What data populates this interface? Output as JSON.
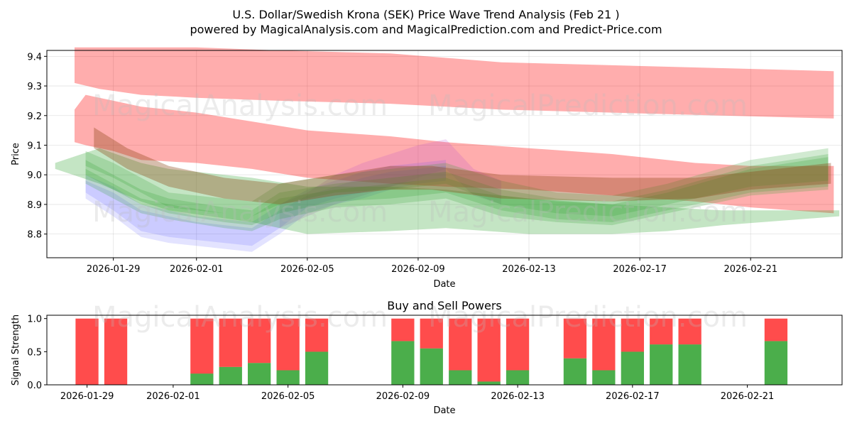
{
  "header": {
    "title_line1": "U.S. Dollar/Swedish Krona (SEK) Price Wave Trend Analysis (Feb 21 )",
    "title_line2": "powered by MagicalAnalysis.com and MagicalPrediction.com and Predict-Price.com"
  },
  "watermarks": {
    "top_left": "MagicalAnalysis.com",
    "top_right": "MagicalPrediction.com",
    "mid_left": "MagicalAnalysis.com",
    "mid_right": "MagicalPrediction.com",
    "bottom_left": "MagicalAnalysis.com",
    "bottom_right": "MagicalPrediction.com"
  },
  "colors": {
    "red_band": "#ff0000",
    "green_band": "#2ca02c",
    "blue_band": "#4444ff",
    "purple_band": "#b040d0",
    "brown_band": "#8b4513",
    "buy": "#2ca02c",
    "sell": "#ff0000"
  },
  "chart_data": [
    {
      "type": "area",
      "title": "",
      "xlabel": "Date",
      "ylabel": "Price",
      "ylim": [
        8.72,
        9.42
      ],
      "yticks": [
        8.8,
        8.9,
        9.0,
        9.1,
        9.2,
        9.3,
        9.4
      ],
      "ytick_labels": [
        "8.8",
        "8.9",
        "9.0",
        "9.1",
        "9.2",
        "9.3",
        "9.4"
      ],
      "xticks": [
        "2026-01-29",
        "2026-02-01",
        "2026-02-05",
        "2026-02-09",
        "2026-02-13",
        "2026-02-17",
        "2026-02-21"
      ],
      "x_day_range": [
        -1.4,
        27.3
      ],
      "x_tick_days": [
        1,
        4,
        8,
        12,
        16,
        20,
        24
      ],
      "series": [
        {
          "name": "red-upper",
          "color": "red",
          "opacity": 0.32,
          "x": [
            -0.4,
            0.5,
            2,
            4,
            7,
            11,
            15,
            19,
            23,
            27
          ],
          "lower": [
            9.31,
            9.29,
            9.27,
            9.26,
            9.25,
            9.24,
            9.22,
            9.21,
            9.2,
            9.19
          ],
          "upper": [
            9.43,
            9.43,
            9.43,
            9.43,
            9.42,
            9.41,
            9.38,
            9.37,
            9.36,
            9.35
          ]
        },
        {
          "name": "red-lower",
          "color": "red",
          "opacity": 0.32,
          "x": [
            -0.4,
            0.0,
            1.0,
            2.0,
            4.0,
            6.0,
            8.0,
            11.0,
            13.0,
            16.0,
            19.0,
            22.0,
            24.0,
            27.0
          ],
          "lower": [
            9.11,
            9.1,
            9.08,
            9.05,
            9.04,
            9.02,
            8.99,
            8.97,
            8.96,
            8.95,
            8.93,
            8.91,
            8.89,
            8.87
          ],
          "upper": [
            9.22,
            9.27,
            9.25,
            9.23,
            9.21,
            9.18,
            9.15,
            9.13,
            9.11,
            9.09,
            9.07,
            9.04,
            9.03,
            9.03
          ]
        },
        {
          "name": "blue-1",
          "color": "blue",
          "opacity": 0.15,
          "x": [
            0,
            1,
            2,
            3,
            4,
            5,
            6,
            7,
            8,
            9,
            10,
            11,
            12,
            13
          ],
          "lower": [
            8.92,
            8.86,
            8.79,
            8.77,
            8.76,
            8.75,
            8.74,
            8.8,
            8.87,
            8.9,
            8.92,
            8.95,
            8.97,
            8.98
          ],
          "upper": [
            8.98,
            8.94,
            8.88,
            8.86,
            8.84,
            8.83,
            8.82,
            8.88,
            8.93,
            8.96,
            8.99,
            9.01,
            9.02,
            9.03
          ]
        },
        {
          "name": "blue-2",
          "color": "blue",
          "opacity": 0.15,
          "x": [
            0,
            1,
            2,
            3,
            4,
            5,
            6,
            7,
            8,
            9,
            10,
            11,
            12,
            13
          ],
          "lower": [
            8.94,
            8.88,
            8.81,
            8.79,
            8.78,
            8.77,
            8.76,
            8.82,
            8.89,
            8.92,
            8.94,
            8.96,
            8.98,
            8.99
          ],
          "upper": [
            9.0,
            8.96,
            8.9,
            8.88,
            8.86,
            8.85,
            8.84,
            8.9,
            8.95,
            8.98,
            9.01,
            9.03,
            9.04,
            9.05
          ]
        },
        {
          "name": "purple-1",
          "color": "purple",
          "opacity": 0.18,
          "x": [
            7,
            8,
            9,
            10,
            11,
            12,
            13,
            14,
            15
          ],
          "lower": [
            8.82,
            8.86,
            8.9,
            8.93,
            8.96,
            8.99,
            9.02,
            8.93,
            8.9
          ],
          "upper": [
            8.9,
            8.94,
            9.0,
            9.04,
            9.07,
            9.1,
            9.12,
            9.02,
            8.98
          ]
        },
        {
          "name": "green-1",
          "color": "green",
          "opacity": 0.28,
          "x": [
            -1.1,
            0.5,
            2.0,
            3.0,
            6.0,
            8.0,
            11.0,
            13.0,
            16.0,
            19.0,
            21.0,
            23.0,
            27.2
          ],
          "lower": [
            9.02,
            8.97,
            8.91,
            8.88,
            8.84,
            8.8,
            8.81,
            8.82,
            8.8,
            8.8,
            8.81,
            8.83,
            8.86
          ],
          "upper": [
            9.04,
            9.09,
            9.04,
            9.02,
            8.99,
            8.96,
            8.96,
            8.95,
            8.92,
            8.9,
            8.89,
            8.88,
            8.88
          ]
        },
        {
          "name": "green-2",
          "color": "green",
          "opacity": 0.22,
          "x": [
            0.0,
            1.0,
            2.0,
            3.0,
            5.0,
            6.0,
            7.0,
            9.0,
            11.0,
            13.0,
            15.0,
            17.0,
            19.0,
            21.0,
            24.0,
            26.8
          ],
          "lower": [
            9.03,
            8.99,
            8.94,
            8.89,
            8.87,
            8.86,
            8.9,
            8.94,
            8.95,
            8.97,
            8.9,
            8.87,
            8.86,
            8.9,
            8.96,
            8.98
          ],
          "upper": [
            9.08,
            9.04,
            8.99,
            8.94,
            8.92,
            8.91,
            8.97,
            9.0,
            9.02,
            9.04,
            8.98,
            8.94,
            8.93,
            8.97,
            9.05,
            9.09
          ]
        },
        {
          "name": "green-3",
          "color": "green",
          "opacity": 0.22,
          "x": [
            0.0,
            1.0,
            2.0,
            3.0,
            5.0,
            6.0,
            7.0,
            9.0,
            11.0,
            13.0,
            15.0,
            17.0,
            19.0,
            21.0,
            24.0,
            26.8
          ],
          "lower": [
            9.0,
            8.95,
            8.9,
            8.87,
            8.84,
            8.83,
            8.87,
            8.91,
            8.92,
            8.94,
            8.88,
            8.85,
            8.84,
            8.88,
            8.94,
            8.96
          ],
          "upper": [
            9.05,
            9.0,
            8.95,
            8.92,
            8.89,
            8.88,
            8.94,
            8.97,
            8.99,
            9.01,
            8.95,
            8.92,
            8.91,
            8.95,
            9.03,
            9.07
          ]
        },
        {
          "name": "green-4",
          "color": "green",
          "opacity": 0.22,
          "x": [
            0.0,
            1.0,
            2.0,
            3.0,
            5.0,
            6.0,
            7.0,
            9.0,
            11.0,
            13.0,
            15.0,
            17.0,
            19.0,
            21.0,
            24.0,
            26.8
          ],
          "lower": [
            8.97,
            8.92,
            8.87,
            8.85,
            8.82,
            8.81,
            8.85,
            8.89,
            8.9,
            8.92,
            8.86,
            8.84,
            8.83,
            8.87,
            8.93,
            8.95
          ],
          "upper": [
            9.02,
            8.97,
            8.92,
            8.9,
            8.87,
            8.86,
            8.92,
            8.95,
            8.97,
            8.99,
            8.93,
            8.91,
            8.9,
            8.94,
            9.02,
            9.06
          ]
        },
        {
          "name": "brown-1",
          "color": "brown",
          "opacity": 0.35,
          "x": [
            0.3,
            1.5,
            3.0,
            5.0,
            7.0,
            9.0,
            11.0,
            12.5,
            15.0,
            19.0,
            22.0,
            24.0,
            26.9
          ],
          "lower": [
            9.09,
            9.02,
            8.96,
            8.92,
            8.9,
            8.93,
            8.95,
            8.95,
            8.92,
            8.91,
            8.92,
            8.95,
            8.97
          ],
          "upper": [
            9.16,
            9.09,
            9.03,
            8.99,
            8.97,
            9.0,
            9.03,
            9.03,
            9.0,
            8.99,
            8.99,
            9.01,
            9.04
          ]
        }
      ]
    },
    {
      "type": "bar",
      "title": "Buy and Sell Powers",
      "xlabel": "Date",
      "ylabel": "Signal Strength",
      "ylim": [
        0,
        1.05
      ],
      "yticks": [
        0.0,
        0.5,
        1.0
      ],
      "ytick_labels": [
        "0.0",
        "0.5",
        "1.0"
      ],
      "xticks": [
        "2026-01-29",
        "2026-02-01",
        "2026-02-05",
        "2026-02-09",
        "2026-02-13",
        "2026-02-17",
        "2026-02-21"
      ],
      "x_day_range": [
        -0.4,
        27.3
      ],
      "x_tick_days": [
        1,
        4,
        8,
        12,
        16,
        20,
        24
      ],
      "series": [
        {
          "name": "Buy",
          "color": "green",
          "days": [
            1,
            2,
            5,
            6,
            7,
            8,
            9,
            12,
            13,
            14,
            15,
            16,
            18,
            19,
            20,
            21,
            22,
            25
          ],
          "values": [
            0.0,
            0.0,
            0.17,
            0.27,
            0.33,
            0.22,
            0.5,
            0.66,
            0.55,
            0.22,
            0.05,
            0.22,
            0.4,
            0.22,
            0.5,
            0.61,
            0.61,
            0.66
          ]
        },
        {
          "name": "Sell",
          "color": "red",
          "days": [
            1,
            2,
            5,
            6,
            7,
            8,
            9,
            12,
            13,
            14,
            15,
            16,
            18,
            19,
            20,
            21,
            22,
            25
          ],
          "values": [
            1.0,
            1.0,
            0.83,
            0.73,
            0.67,
            0.78,
            0.5,
            0.34,
            0.45,
            0.78,
            0.95,
            0.78,
            0.6,
            0.78,
            0.5,
            0.39,
            0.39,
            0.34
          ]
        }
      ]
    }
  ]
}
